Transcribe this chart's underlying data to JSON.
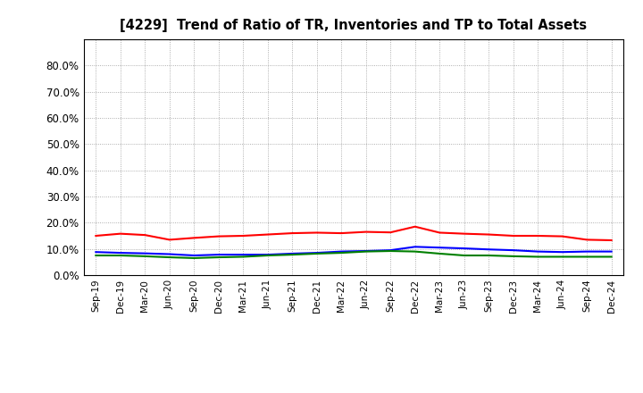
{
  "title": "[4229]  Trend of Ratio of TR, Inventories and TP to Total Assets",
  "x_labels": [
    "Sep-19",
    "Dec-19",
    "Mar-20",
    "Jun-20",
    "Sep-20",
    "Dec-20",
    "Mar-21",
    "Jun-21",
    "Sep-21",
    "Dec-21",
    "Mar-22",
    "Jun-22",
    "Sep-22",
    "Dec-22",
    "Mar-23",
    "Jun-23",
    "Sep-23",
    "Dec-23",
    "Mar-24",
    "Jun-24",
    "Sep-24",
    "Dec-24"
  ],
  "trade_receivables": [
    15.0,
    15.8,
    15.3,
    13.5,
    14.2,
    14.8,
    15.0,
    15.5,
    16.0,
    16.2,
    16.0,
    16.5,
    16.3,
    18.5,
    16.2,
    15.8,
    15.5,
    15.0,
    15.0,
    14.8,
    13.5,
    13.3
  ],
  "inventories": [
    8.8,
    8.5,
    8.3,
    8.0,
    7.5,
    7.8,
    7.8,
    7.8,
    8.2,
    8.5,
    9.0,
    9.2,
    9.5,
    10.8,
    10.5,
    10.2,
    9.8,
    9.5,
    9.0,
    8.8,
    9.0,
    9.0
  ],
  "trade_payables": [
    7.5,
    7.5,
    7.2,
    6.8,
    6.5,
    6.8,
    7.0,
    7.5,
    7.8,
    8.2,
    8.5,
    9.0,
    9.2,
    9.0,
    8.2,
    7.5,
    7.5,
    7.2,
    7.0,
    7.0,
    7.0,
    7.0
  ],
  "tr_color": "#ff0000",
  "inv_color": "#0000ff",
  "tp_color": "#008000",
  "ylim_max": 90,
  "yticks": [
    0,
    10,
    20,
    30,
    40,
    50,
    60,
    70,
    80
  ],
  "background_color": "#ffffff",
  "grid_color": "#999999"
}
